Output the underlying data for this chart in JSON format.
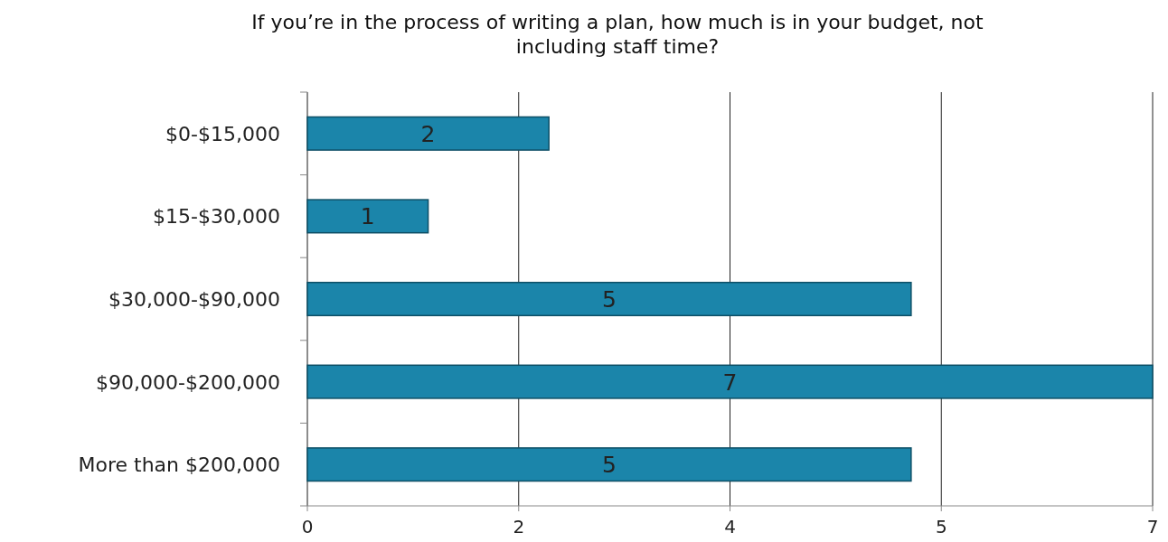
{
  "chart_data": {
    "type": "bar",
    "orientation": "horizontal",
    "title": "If you’re in the process of writing a plan, how much is in your budget, not including staff time?",
    "categories": [
      "$0-$15,000",
      "$15-$30,000",
      "$30,000-$90,000",
      "$90,000-$200,000",
      "More than $200,000"
    ],
    "values": [
      2,
      1,
      5,
      7,
      5
    ],
    "color": "#1b85aa",
    "data_labels": true,
    "grid": "x",
    "xlim": [
      0,
      7
    ],
    "xticks": [
      0,
      {
        "value": 1.75,
        "label": "2"
      },
      {
        "value": 3.5,
        "label": "4"
      },
      {
        "value": 5.25,
        "label": "5"
      },
      7
    ]
  }
}
